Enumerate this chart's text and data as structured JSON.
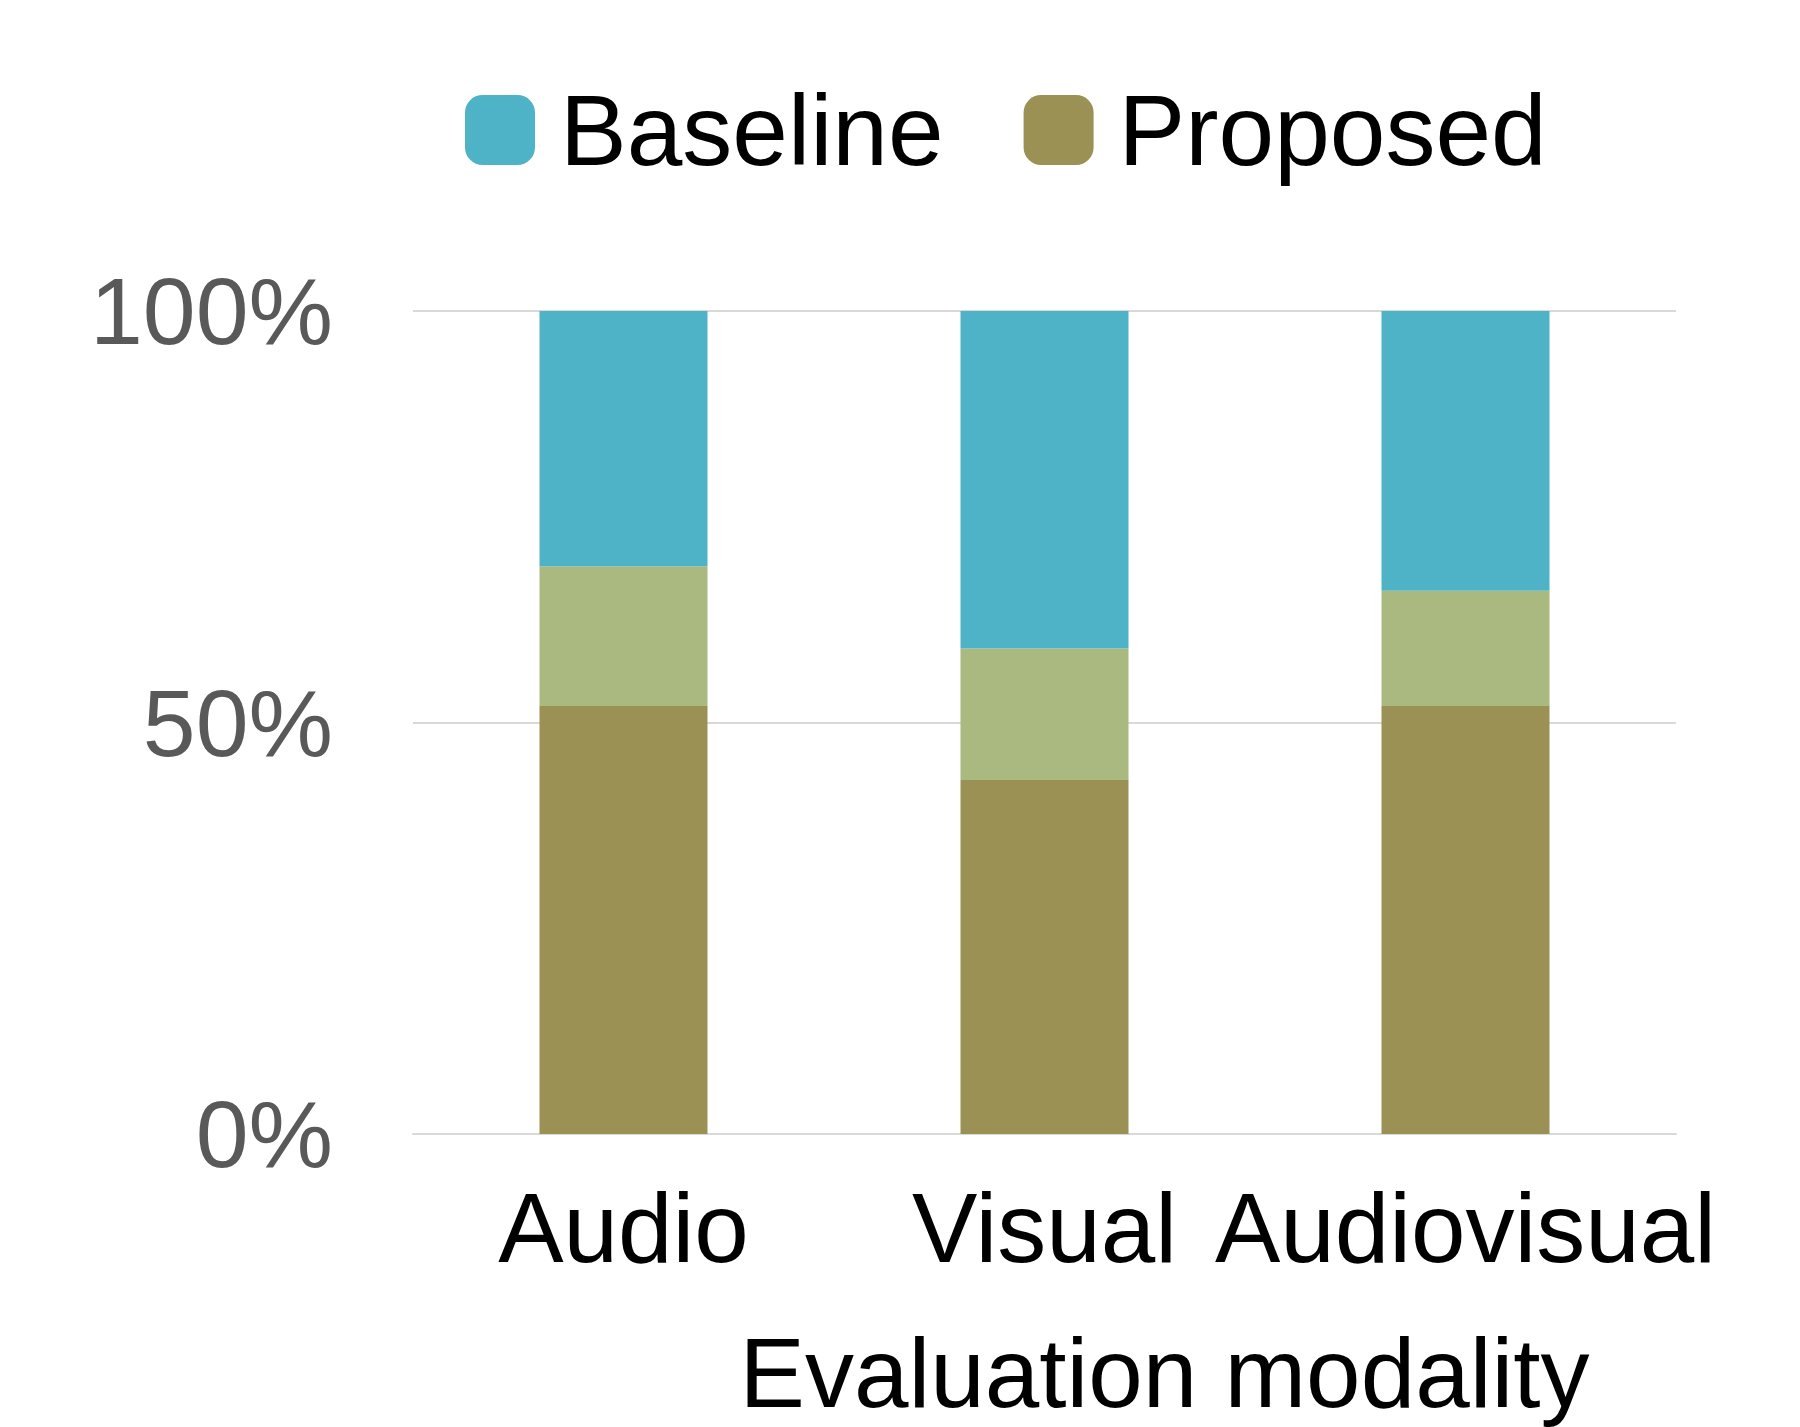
{
  "chart_data": {
    "type": "bar",
    "stacked": true,
    "xlabel": "Evaluation modality",
    "categories": [
      "Audio",
      "Visual",
      "Audiovisual"
    ],
    "series": [
      {
        "name": "Proposed",
        "color": "#9c9154",
        "values": [
          52,
          43,
          52
        ]
      },
      {
        "color": "#a9b97f",
        "values": [
          17,
          16,
          14
        ]
      },
      {
        "name": "Baseline",
        "color": "#4fb3c8",
        "values": [
          31,
          41,
          34
        ]
      }
    ],
    "ylim": [
      0,
      100
    ],
    "yticks": [
      {
        "value": 0,
        "label": "0%"
      },
      {
        "value": 50,
        "label": "50%"
      },
      {
        "value": 100,
        "label": "100%"
      }
    ],
    "grid": "y",
    "legend": "top"
  }
}
